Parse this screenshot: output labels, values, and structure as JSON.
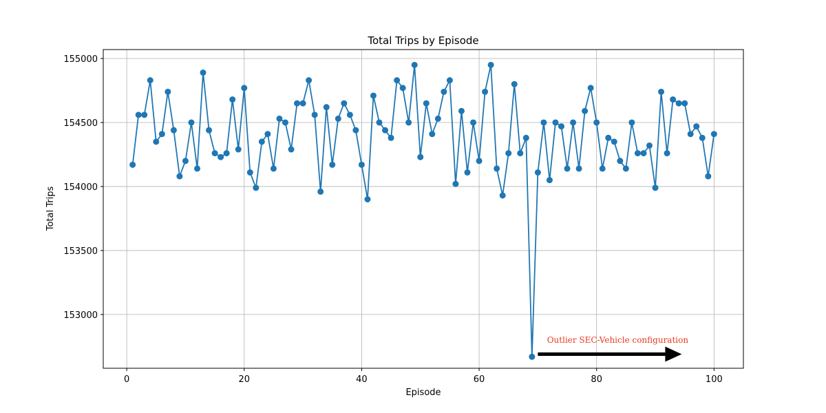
{
  "chart_data": {
    "type": "line",
    "title": "Total Trips by Episode",
    "xlabel": "Episode",
    "ylabel": "Total Trips",
    "xlim": [
      -4,
      105
    ],
    "ylim": [
      152580,
      155070
    ],
    "xticks": [
      0,
      20,
      40,
      60,
      80,
      100
    ],
    "yticks": [
      153000,
      153500,
      154000,
      154500,
      155000
    ],
    "grid": true,
    "series": [
      {
        "name": "",
        "color": "#1f77b4",
        "marker": "circle",
        "x": [
          1,
          2,
          3,
          4,
          5,
          6,
          7,
          8,
          9,
          10,
          11,
          12,
          13,
          14,
          15,
          16,
          17,
          18,
          19,
          20,
          21,
          22,
          23,
          24,
          25,
          26,
          27,
          28,
          29,
          30,
          31,
          32,
          33,
          34,
          35,
          36,
          37,
          38,
          39,
          40,
          41,
          42,
          43,
          44,
          45,
          46,
          47,
          48,
          49,
          50,
          51,
          52,
          53,
          54,
          55,
          56,
          57,
          58,
          59,
          60,
          61,
          62,
          63,
          64,
          65,
          66,
          67,
          68,
          69,
          70,
          71,
          72,
          73,
          74,
          75,
          76,
          77,
          78,
          79,
          80,
          81,
          82,
          83,
          84,
          85,
          86,
          87,
          88,
          89,
          90,
          91,
          92,
          93,
          94,
          95,
          96,
          97,
          98,
          99,
          100
        ],
        "y": [
          154170,
          154560,
          154560,
          154830,
          154350,
          154410,
          154740,
          154440,
          154080,
          154200,
          154500,
          154140,
          154890,
          154440,
          154260,
          154230,
          154260,
          154680,
          154290,
          154770,
          154110,
          153990,
          154350,
          154410,
          154140,
          154530,
          154500,
          154290,
          154650,
          154650,
          154830,
          154560,
          153960,
          154620,
          154170,
          154530,
          154650,
          154560,
          154440,
          154170,
          153900,
          154710,
          154500,
          154440,
          154380,
          154830,
          154770,
          154500,
          154950,
          154230,
          154650,
          154410,
          154530,
          154740,
          154830,
          154020,
          154590,
          154110,
          154500,
          154200,
          154740,
          154950,
          154140,
          153930,
          154260,
          154800,
          154260,
          154380,
          152670,
          154110,
          154500,
          154050,
          154500,
          154470,
          154140,
          154500,
          154140,
          154590,
          154770,
          154500,
          154140,
          154380,
          154350,
          154200,
          154140,
          154500,
          154260,
          154260,
          154320,
          153990,
          154740,
          154260,
          154680,
          154650,
          154650,
          154410,
          154470,
          154380,
          154080,
          154410
        ]
      }
    ],
    "annotation": {
      "text": "Outlier SEC-Vehicle configuration",
      "text_color": "#e8391e",
      "text_x": 83.6,
      "text_y": 152780,
      "arrow_from": [
        70,
        152690
      ],
      "arrow_to": [
        94.5,
        152690
      ],
      "arrow_color": "#000000"
    }
  }
}
